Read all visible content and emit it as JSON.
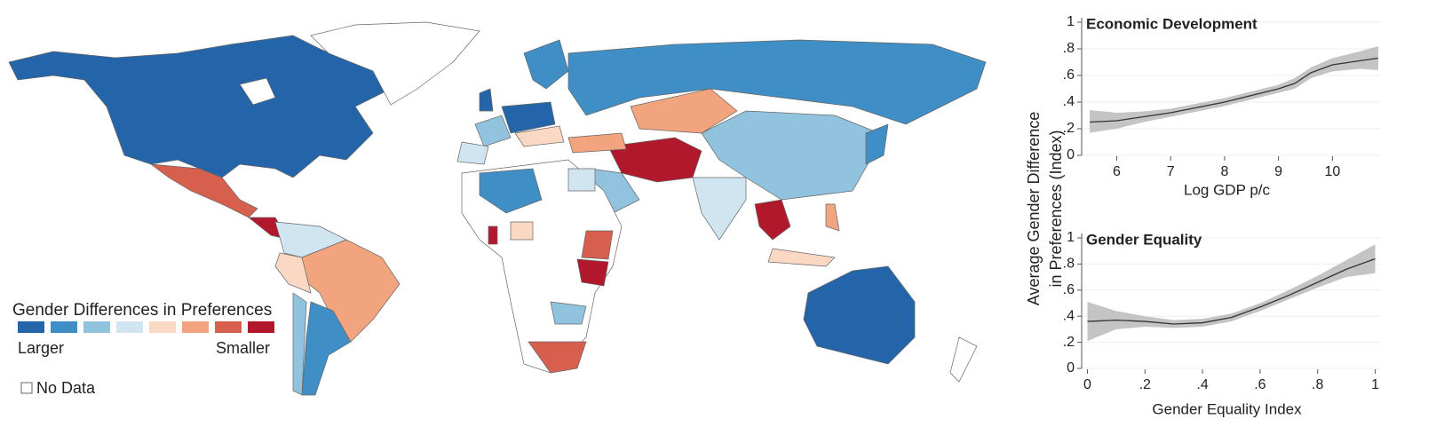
{
  "map": {
    "legend_title": "Gender Differences in Preferences",
    "legend_colors": [
      "#2465a9",
      "#3f8ec5",
      "#92c3de",
      "#d1e5f0",
      "#fbd8c4",
      "#f2a47e",
      "#d6604d",
      "#b2182b"
    ],
    "label_low": "Larger",
    "label_high": "Smaller",
    "no_data": "No Data"
  },
  "shared_ylabel": [
    "Average Gender Difference",
    "in Preferences (Index)"
  ],
  "chart_data": [
    {
      "type": "line",
      "title": "Economic Development",
      "xlabel": "Log GDP p/c",
      "x": [
        5.5,
        6,
        6.5,
        7,
        7.5,
        8,
        8.5,
        9,
        9.3,
        9.6,
        10,
        10.5,
        10.85
      ],
      "values": [
        0.25,
        0.26,
        0.29,
        0.32,
        0.36,
        0.4,
        0.45,
        0.5,
        0.54,
        0.62,
        0.68,
        0.71,
        0.73
      ],
      "lower": [
        0.17,
        0.2,
        0.25,
        0.29,
        0.33,
        0.37,
        0.42,
        0.47,
        0.5,
        0.58,
        0.63,
        0.65,
        0.64
      ],
      "upper": [
        0.34,
        0.32,
        0.33,
        0.35,
        0.39,
        0.43,
        0.48,
        0.53,
        0.58,
        0.66,
        0.73,
        0.78,
        0.82
      ],
      "color": "#333333",
      "band_color": "#c4c4c4",
      "xlim": [
        5.35,
        10.9
      ],
      "xticks": [
        6,
        7,
        8,
        9,
        10
      ],
      "ylim": [
        0,
        1
      ],
      "yticks": [
        0,
        {
          "value": 0.2,
          "label": ".2"
        },
        {
          "value": 0.4,
          "label": ".4"
        },
        {
          "value": 0.6,
          "label": ".6"
        },
        {
          "value": 0.8,
          "label": ".8"
        },
        1
      ],
      "grid": true
    },
    {
      "type": "line",
      "title": "Gender Equality",
      "xlabel": "Gender Equality Index",
      "x": [
        0,
        0.1,
        0.2,
        0.3,
        0.4,
        0.5,
        0.6,
        0.7,
        0.8,
        0.9,
        1
      ],
      "values": [
        0.36,
        0.37,
        0.36,
        0.34,
        0.35,
        0.39,
        0.47,
        0.56,
        0.66,
        0.76,
        0.84
      ],
      "lower": [
        0.21,
        0.3,
        0.32,
        0.31,
        0.32,
        0.36,
        0.44,
        0.53,
        0.62,
        0.7,
        0.73
      ],
      "upper": [
        0.51,
        0.44,
        0.4,
        0.37,
        0.38,
        0.42,
        0.5,
        0.6,
        0.71,
        0.83,
        0.95
      ],
      "color": "#333333",
      "band_color": "#c4c4c4",
      "xlim": [
        -0.02,
        1.02
      ],
      "xticks": [
        0,
        {
          "value": 0.2,
          "label": ".2"
        },
        {
          "value": 0.4,
          "label": ".4"
        },
        {
          "value": 0.6,
          "label": ".6"
        },
        {
          "value": 0.8,
          "label": ".8"
        },
        1
      ],
      "ylim": [
        0,
        1
      ],
      "yticks": [
        0,
        {
          "value": 0.2,
          "label": ".2"
        },
        {
          "value": 0.4,
          "label": ".4"
        },
        {
          "value": 0.6,
          "label": ".6"
        },
        {
          "value": 0.8,
          "label": ".8"
        },
        1
      ],
      "grid": true
    }
  ]
}
